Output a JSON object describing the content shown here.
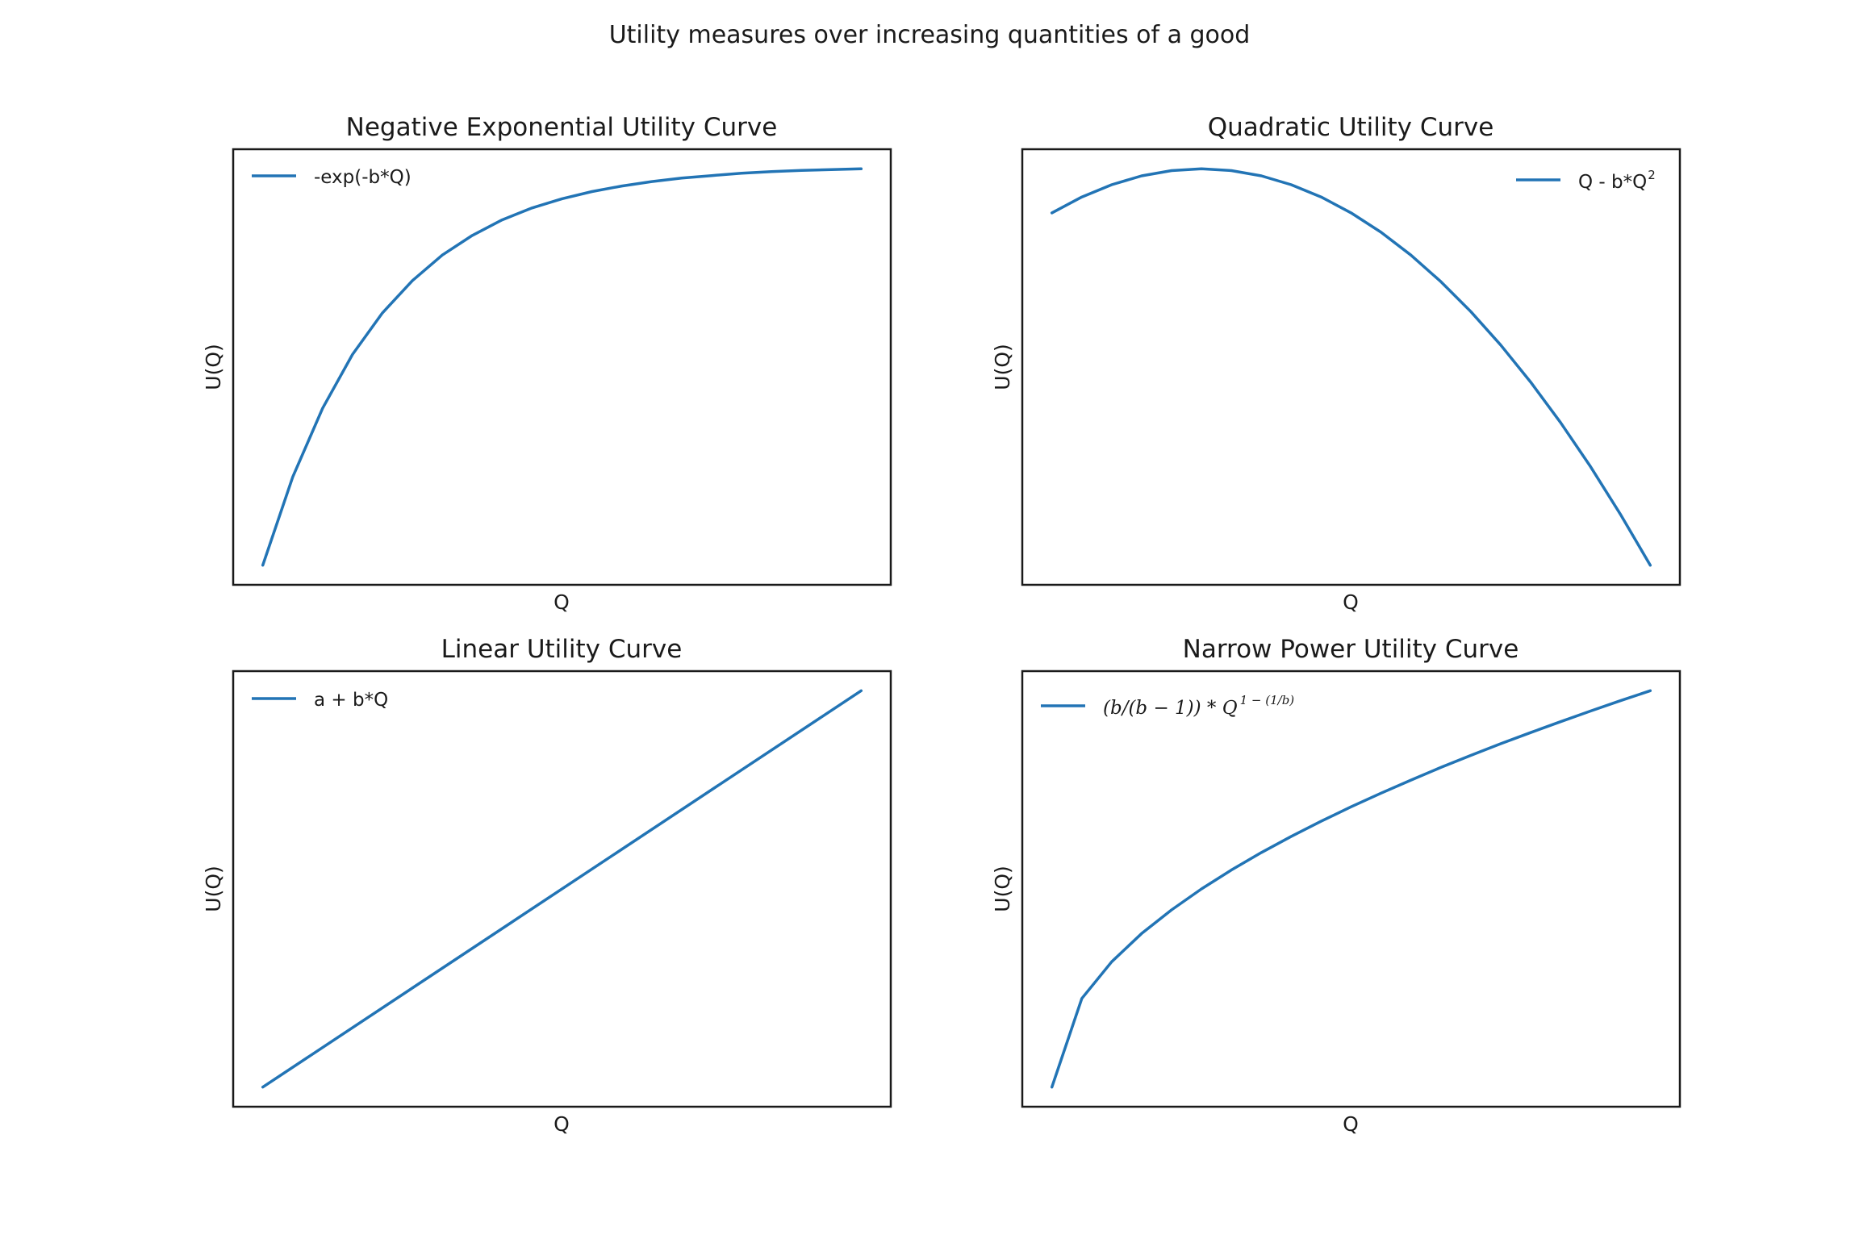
{
  "figure": {
    "suptitle": "Utility measures over increasing quantities of a good"
  },
  "colors": {
    "line": "#2274b5",
    "frame": "#1a1a1a",
    "background": "#ffffff"
  },
  "chart_data": [
    {
      "type": "line",
      "title": "Negative Exponential Utility Curve",
      "xlabel": "Q",
      "ylabel": "U(Q)",
      "ticks_shown": false,
      "grid": false,
      "legend_position": "top-left",
      "series": [
        {
          "name": "-exp(-b*Q)",
          "x": [
            0,
            0.5,
            1,
            1.5,
            2,
            2.5,
            3,
            3.5,
            4,
            4.5,
            5,
            5.5,
            6,
            6.5,
            7,
            7.5,
            8,
            8.5,
            9,
            9.5,
            10
          ],
          "y": [
            -1,
            -0.779,
            -0.607,
            -0.472,
            -0.368,
            -0.287,
            -0.223,
            -0.174,
            -0.135,
            -0.105,
            -0.082,
            -0.064,
            -0.05,
            -0.039,
            -0.03,
            -0.024,
            -0.018,
            -0.014,
            -0.011,
            -0.009,
            -0.007
          ]
        }
      ]
    },
    {
      "type": "line",
      "title": "Quadratic Utility Curve",
      "xlabel": "Q",
      "ylabel": "U(Q)",
      "ticks_shown": false,
      "grid": false,
      "legend_position": "top-right",
      "series": [
        {
          "name": "Q - b*Q²",
          "x": [
            0,
            0.5,
            1,
            1.5,
            2,
            2.5,
            3,
            3.5,
            4,
            4.5,
            5,
            5.5,
            6,
            6.5,
            7,
            7.5,
            8,
            8.5,
            9,
            9.5,
            10
          ],
          "y": [
            0,
            0.45,
            0.8,
            1.05,
            1.2,
            1.25,
            1.2,
            1.05,
            0.8,
            0.45,
            0,
            -0.55,
            -1.2,
            -1.95,
            -2.8,
            -3.75,
            -4.8,
            -5.95,
            -7.2,
            -8.55,
            -10
          ]
        }
      ]
    },
    {
      "type": "line",
      "title": "Linear Utility Curve",
      "xlabel": "Q",
      "ylabel": "U(Q)",
      "ticks_shown": false,
      "grid": false,
      "legend_position": "top-left",
      "series": [
        {
          "name": "a + b*Q",
          "x": [
            0,
            10
          ],
          "y": [
            1,
            6
          ]
        }
      ]
    },
    {
      "type": "line",
      "title": "Narrow Power Utility Curve",
      "xlabel": "Q",
      "ylabel": "U(Q)",
      "ticks_shown": false,
      "grid": false,
      "legend_position": "top-left",
      "series": [
        {
          "name": "(b/(b−1)) * Q^(1−(1/b))",
          "legend_main": "(b/(b − 1)) * Q",
          "legend_exponent": "1 − (1/b)",
          "x": [
            0,
            0.5,
            1,
            1.5,
            2,
            2.5,
            3,
            3.5,
            4,
            4.5,
            5,
            5.5,
            6,
            6.5,
            7,
            7.5,
            8,
            8.5,
            9,
            9.5,
            10
          ],
          "y": [
            0,
            0.707,
            1,
            1.225,
            1.414,
            1.581,
            1.732,
            1.871,
            2,
            2.121,
            2.236,
            2.345,
            2.449,
            2.55,
            2.646,
            2.739,
            2.828,
            2.915,
            3,
            3.082,
            3.162
          ]
        }
      ]
    }
  ]
}
